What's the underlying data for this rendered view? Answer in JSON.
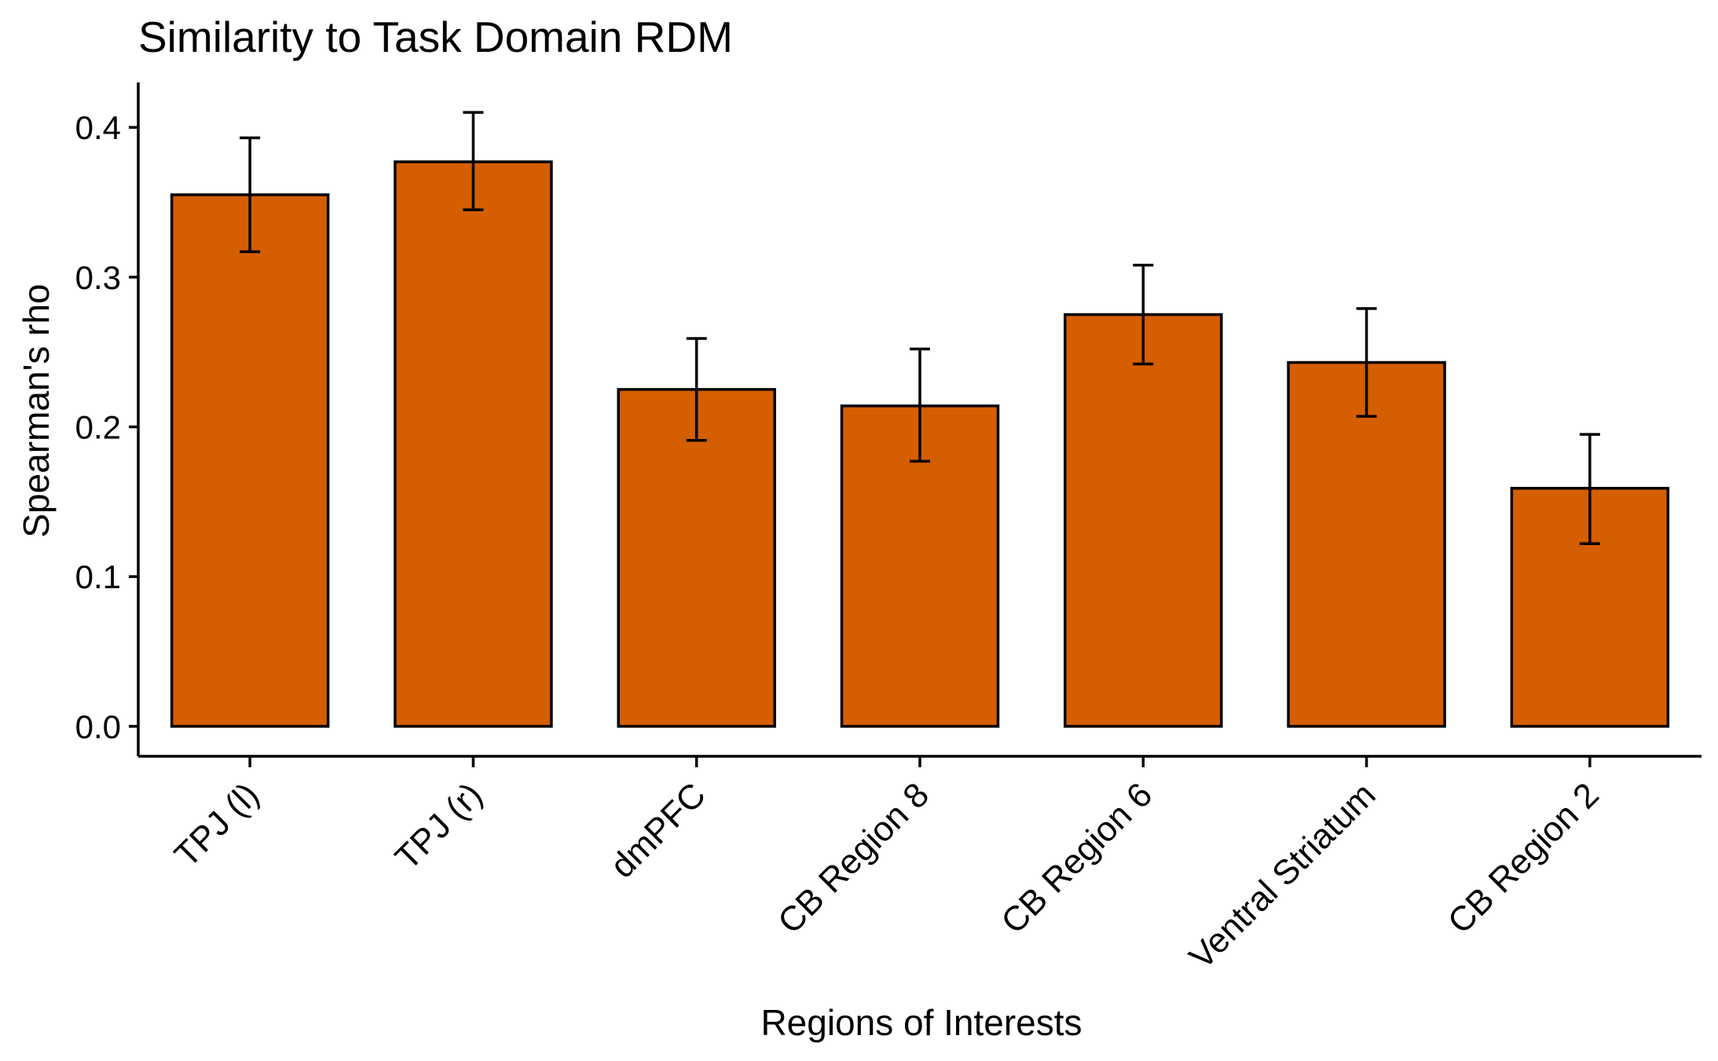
{
  "chart_data": {
    "type": "bar",
    "title": "Similarity to Task Domain RDM",
    "xlabel": "Regions of Interests",
    "ylabel": "Spearman's rho",
    "categories": [
      "TPJ (l)",
      "TPJ (r)",
      "dmPFC",
      "CB Region 8",
      "CB Region 6",
      "Ventral Striatum",
      "CB Region 2"
    ],
    "values": [
      0.355,
      0.377,
      0.225,
      0.214,
      0.275,
      0.243,
      0.159
    ],
    "error_bars": {
      "lower": [
        0.317,
        0.345,
        0.191,
        0.177,
        0.242,
        0.207,
        0.122
      ],
      "upper": [
        0.393,
        0.41,
        0.259,
        0.252,
        0.308,
        0.279,
        0.195
      ]
    },
    "yticks": [
      "0.0",
      "0.1",
      "0.2",
      "0.3",
      "0.4"
    ],
    "ytick_values": [
      0.0,
      0.1,
      0.2,
      0.3,
      0.4
    ],
    "ylim": [
      -0.02,
      0.43
    ],
    "grid": false,
    "legend": "none",
    "colors": {
      "bar_fill": "#D55E00",
      "bar_stroke": "#000000",
      "axis": "#000000"
    }
  }
}
